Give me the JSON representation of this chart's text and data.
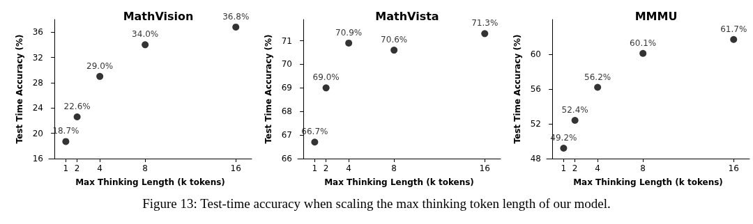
{
  "chart_data": [
    {
      "type": "scatter",
      "title": "MathVision",
      "xlabel": "Max Thinking Length (k tokens)",
      "ylabel": "Test Time Accuracy (%)",
      "x": [
        1,
        2,
        4,
        8,
        16
      ],
      "values": [
        18.7,
        22.6,
        29.0,
        34.0,
        36.8
      ],
      "value_labels": [
        "18.7%",
        "22.6%",
        "29.0%",
        "34.0%",
        "36.8%"
      ],
      "color": "#000000",
      "marker": "circle",
      "xlim": [
        -0.5,
        17.4
      ],
      "ylim": [
        16,
        38
      ],
      "xticks": [
        1,
        2,
        4,
        8,
        16
      ],
      "yticks": [
        16,
        20,
        24,
        28,
        32,
        36
      ],
      "grid": false
    },
    {
      "type": "scatter",
      "title": "MathVista",
      "xlabel": "Max Thinking Length (k tokens)",
      "ylabel": "Test Time Accuracy (%)",
      "x": [
        1,
        2,
        4,
        8,
        16
      ],
      "values": [
        66.7,
        69.0,
        70.9,
        70.6,
        71.3
      ],
      "value_labels": [
        "66.7%",
        "69.0%",
        "70.9%",
        "70.6%",
        "71.3%"
      ],
      "color": "#000000",
      "marker": "circle",
      "xlim": [
        -0.5,
        17.4
      ],
      "ylim": [
        66,
        71.9
      ],
      "xticks": [
        1,
        2,
        4,
        8,
        16
      ],
      "yticks": [
        66,
        67,
        68,
        69,
        70,
        71
      ],
      "grid": false
    },
    {
      "type": "scatter",
      "title": "MMMU",
      "xlabel": "Max Thinking Length (k tokens)",
      "ylabel": "Test Time Accuracy (%)",
      "x": [
        1,
        2,
        4,
        8,
        16
      ],
      "values": [
        49.2,
        52.4,
        56.2,
        60.1,
        61.7
      ],
      "value_labels": [
        "49.2%",
        "52.4%",
        "56.2%",
        "60.1%",
        "61.7%"
      ],
      "color": "#000000",
      "marker": "circle",
      "xlim": [
        -0.5,
        17.4
      ],
      "ylim": [
        48,
        64
      ],
      "xticks": [
        1,
        2,
        4,
        8,
        16
      ],
      "yticks": [
        48,
        52,
        56,
        60
      ],
      "grid": false,
      "annotations": [
        "Figure 13: Test-time accuracy when scaling the max thinking token length of our model."
      ]
    }
  ]
}
